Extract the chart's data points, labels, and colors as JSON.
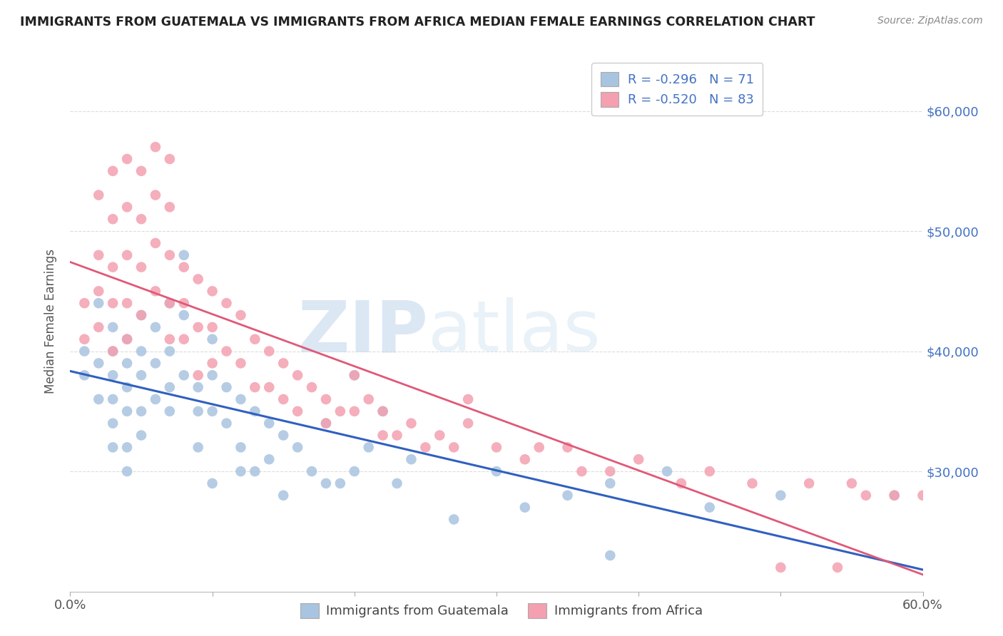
{
  "title": "IMMIGRANTS FROM GUATEMALA VS IMMIGRANTS FROM AFRICA MEDIAN FEMALE EARNINGS CORRELATION CHART",
  "source": "Source: ZipAtlas.com",
  "ylabel": "Median Female Earnings",
  "x_min": 0.0,
  "x_max": 0.6,
  "y_min": 20000,
  "y_max": 65000,
  "y_ticks": [
    30000,
    40000,
    50000,
    60000
  ],
  "y_tick_labels": [
    "$30,000",
    "$40,000",
    "$50,000",
    "$60,000"
  ],
  "x_ticks": [
    0.0,
    0.1,
    0.2,
    0.3,
    0.4,
    0.5,
    0.6
  ],
  "x_tick_labels": [
    "0.0%",
    "",
    "",
    "",
    "",
    "",
    "60.0%"
  ],
  "guatemala_color": "#a8c4e0",
  "africa_color": "#f4a0b0",
  "guatemala_line_color": "#3060c0",
  "africa_line_color": "#e05878",
  "R_guatemala": -0.296,
  "N_guatemala": 71,
  "R_africa": -0.52,
  "N_africa": 83,
  "legend_label_1": "Immigrants from Guatemala",
  "legend_label_2": "Immigrants from Africa",
  "watermark_zip": "ZIP",
  "watermark_atlas": "atlas",
  "background_color": "#ffffff",
  "grid_color": "#dddddd",
  "title_color": "#222222",
  "right_label_color": "#4472c4",
  "guatemala_scatter_x": [
    0.01,
    0.01,
    0.02,
    0.02,
    0.02,
    0.03,
    0.03,
    0.03,
    0.03,
    0.03,
    0.03,
    0.04,
    0.04,
    0.04,
    0.04,
    0.04,
    0.04,
    0.05,
    0.05,
    0.05,
    0.05,
    0.05,
    0.06,
    0.06,
    0.06,
    0.07,
    0.07,
    0.07,
    0.07,
    0.08,
    0.08,
    0.08,
    0.09,
    0.09,
    0.09,
    0.1,
    0.1,
    0.1,
    0.1,
    0.11,
    0.11,
    0.12,
    0.12,
    0.12,
    0.13,
    0.13,
    0.14,
    0.14,
    0.15,
    0.15,
    0.16,
    0.17,
    0.18,
    0.18,
    0.19,
    0.2,
    0.2,
    0.21,
    0.22,
    0.23,
    0.24,
    0.27,
    0.3,
    0.32,
    0.35,
    0.38,
    0.38,
    0.42,
    0.45,
    0.5,
    0.58
  ],
  "guatemala_scatter_y": [
    40000,
    38000,
    44000,
    39000,
    36000,
    42000,
    40000,
    38000,
    36000,
    34000,
    32000,
    41000,
    39000,
    37000,
    35000,
    32000,
    30000,
    43000,
    40000,
    38000,
    35000,
    33000,
    42000,
    39000,
    36000,
    44000,
    40000,
    37000,
    35000,
    48000,
    43000,
    38000,
    37000,
    35000,
    32000,
    41000,
    38000,
    35000,
    29000,
    37000,
    34000,
    36000,
    32000,
    30000,
    35000,
    30000,
    34000,
    31000,
    33000,
    28000,
    32000,
    30000,
    34000,
    29000,
    29000,
    38000,
    30000,
    32000,
    35000,
    29000,
    31000,
    26000,
    30000,
    27000,
    28000,
    29000,
    23000,
    30000,
    27000,
    28000,
    28000
  ],
  "africa_scatter_x": [
    0.01,
    0.01,
    0.02,
    0.02,
    0.02,
    0.02,
    0.03,
    0.03,
    0.03,
    0.03,
    0.03,
    0.04,
    0.04,
    0.04,
    0.04,
    0.04,
    0.05,
    0.05,
    0.05,
    0.05,
    0.06,
    0.06,
    0.06,
    0.06,
    0.07,
    0.07,
    0.07,
    0.07,
    0.07,
    0.08,
    0.08,
    0.08,
    0.09,
    0.09,
    0.09,
    0.1,
    0.1,
    0.1,
    0.11,
    0.11,
    0.12,
    0.12,
    0.13,
    0.13,
    0.14,
    0.14,
    0.15,
    0.15,
    0.16,
    0.16,
    0.17,
    0.18,
    0.18,
    0.19,
    0.2,
    0.2,
    0.21,
    0.22,
    0.22,
    0.23,
    0.24,
    0.25,
    0.26,
    0.27,
    0.28,
    0.3,
    0.32,
    0.35,
    0.38,
    0.4,
    0.43,
    0.45,
    0.48,
    0.5,
    0.52,
    0.54,
    0.55,
    0.56,
    0.58,
    0.6,
    0.28,
    0.33,
    0.36
  ],
  "africa_scatter_y": [
    44000,
    41000,
    53000,
    48000,
    45000,
    42000,
    55000,
    51000,
    47000,
    44000,
    40000,
    56000,
    52000,
    48000,
    44000,
    41000,
    55000,
    51000,
    47000,
    43000,
    57000,
    53000,
    49000,
    45000,
    56000,
    52000,
    48000,
    44000,
    41000,
    47000,
    44000,
    41000,
    46000,
    42000,
    38000,
    45000,
    42000,
    39000,
    44000,
    40000,
    43000,
    39000,
    41000,
    37000,
    40000,
    37000,
    39000,
    36000,
    38000,
    35000,
    37000,
    36000,
    34000,
    35000,
    38000,
    35000,
    36000,
    33000,
    35000,
    33000,
    34000,
    32000,
    33000,
    32000,
    34000,
    32000,
    31000,
    32000,
    30000,
    31000,
    29000,
    30000,
    29000,
    22000,
    29000,
    22000,
    29000,
    28000,
    28000,
    28000,
    36000,
    32000,
    30000
  ]
}
